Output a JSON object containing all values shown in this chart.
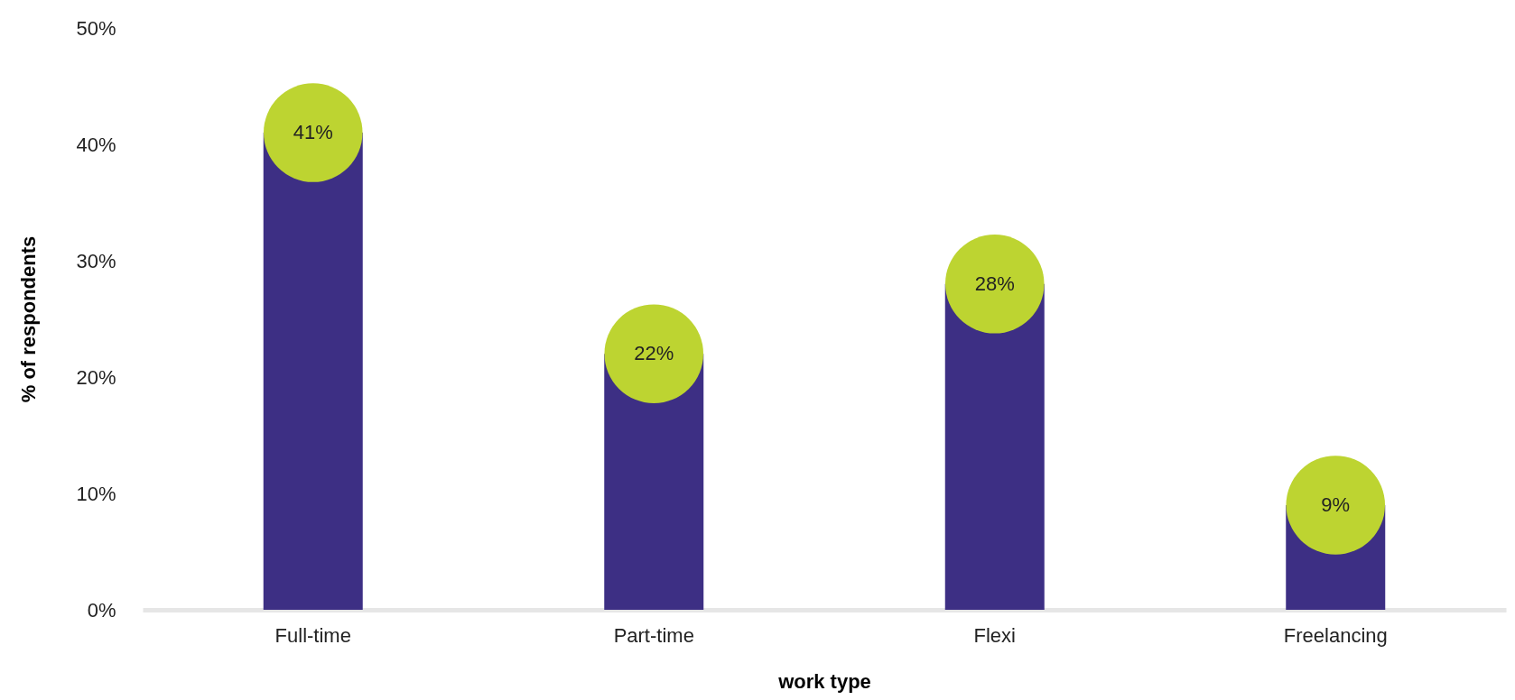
{
  "chart_data": {
    "type": "bar",
    "xlabel": "work type",
    "ylabel": "% of respondents",
    "categories": [
      "Full-time",
      "Part-time",
      "Flexi",
      "Freelancing"
    ],
    "series": [
      {
        "color": "#3d2f84",
        "values": [
          41,
          22,
          28,
          9
        ]
      },
      {
        "type": "scatter",
        "color": "#bdd431",
        "marker": "circle",
        "values": [
          41,
          22,
          28,
          9
        ],
        "value_labels": [
          "41%",
          "22%",
          "28%",
          "9%"
        ]
      }
    ],
    "ylim": [
      0,
      50
    ],
    "yticks": [
      {
        "value": 0,
        "label": "0%"
      },
      {
        "value": 10,
        "label": "10%"
      },
      {
        "value": 20,
        "label": "20%"
      },
      {
        "value": 30,
        "label": "30%"
      },
      {
        "value": 40,
        "label": "40%"
      },
      {
        "value": 50,
        "label": "50%"
      }
    ],
    "grid": false
  }
}
